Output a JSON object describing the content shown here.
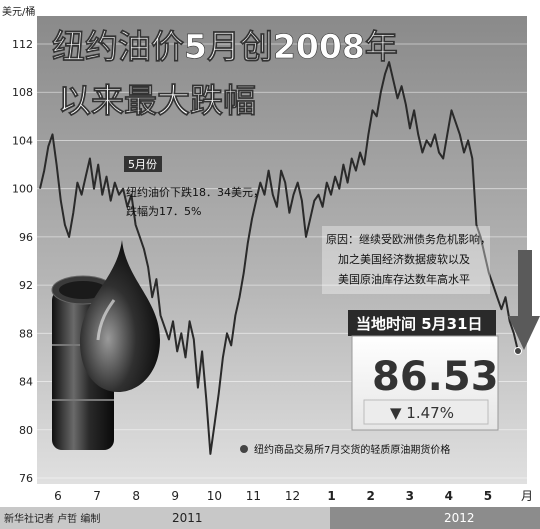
{
  "title_line1": "纽约油价5月创2008年",
  "title_line2": "以来最大跌幅",
  "y_unit": "美元/桶",
  "may_tag": "5月份",
  "may_note_line1": "纽约油价下跌18．34美元，",
  "may_note_line2": "跌幅为17．5%",
  "reason_line1": "原因：继续受欧洲债务危机影响，",
  "reason_line2": "加之美国经济数据疲软以及",
  "reason_line3": "美国原油库存达数年高水平",
  "price_header": "当地时间 5月31日",
  "price_value": "86.53",
  "price_change": "▼ 1.47%",
  "legend_text": "纽约商品交易所7月交货的轻质原油期货价格",
  "credit": "新华社记者 卢哲 编制",
  "year_2011": "2011",
  "year_2012": "2012",
  "colors": {
    "line": "#2a2a2a",
    "grid": "#ffffff",
    "bg_top": "#8a8a8a",
    "bg_bottom": "#d8d8d8",
    "title": "#ffffff",
    "arrow": "#5a5a5a"
  },
  "chart_data": {
    "type": "line",
    "title": "纽约油价5月创2008年以来最大跌幅",
    "ylabel": "美元/桶",
    "xlabel": "",
    "ylim": [
      76,
      112
    ],
    "yticks": [
      76,
      80,
      84,
      88,
      92,
      96,
      100,
      104,
      108,
      112
    ],
    "x_tick_labels": [
      "6",
      "7",
      "8",
      "9",
      "10",
      "11",
      "12",
      "1",
      "2",
      "3",
      "4",
      "5",
      "月"
    ],
    "x_tick_bold": [
      false,
      false,
      false,
      false,
      false,
      false,
      false,
      true,
      true,
      true,
      true,
      true,
      false
    ],
    "grid": true,
    "series": [
      {
        "values": [
          100.0,
          101.5,
          103.5,
          104.5,
          102.0,
          99.0,
          97.0,
          96.0,
          98.0,
          100.5,
          99.5,
          101.0,
          102.5,
          100.0,
          102.0,
          99.5,
          101.0,
          99.0,
          100.5,
          99.5,
          100.0,
          98.5,
          99.5,
          97.0,
          96.0,
          95.0,
          93.5,
          91.0,
          92.5,
          89.5,
          88.5,
          87.5,
          89.0,
          86.5,
          88.0,
          86.0,
          89.0,
          87.5,
          83.5,
          86.5,
          82.5,
          78.0,
          80.5,
          83.0,
          86.0,
          88.0,
          87.0,
          89.5,
          91.0,
          93.0,
          95.5,
          97.5,
          99.0,
          100.5,
          99.5,
          101.5,
          99.5,
          98.5,
          101.5,
          100.5,
          98.0,
          99.5,
          100.5,
          99.0,
          96.0,
          97.5,
          99.0,
          99.5,
          98.5,
          100.5,
          99.5,
          101.0,
          100.0,
          102.0,
          100.5,
          102.5,
          101.5,
          103.0,
          102.0,
          104.5,
          106.5,
          106.0,
          108.0,
          109.5,
          110.5,
          109.0,
          107.5,
          108.5,
          107.0,
          105.0,
          106.5,
          104.5,
          103.0,
          104.0,
          103.5,
          104.5,
          103.0,
          102.5,
          104.5,
          106.5,
          105.5,
          104.5,
          103.0,
          104.0,
          102.5,
          97.0,
          96.0,
          94.5,
          93.0,
          92.0,
          91.0,
          90.0,
          91.0,
          89.0,
          88.0,
          86.53
        ]
      }
    ]
  }
}
